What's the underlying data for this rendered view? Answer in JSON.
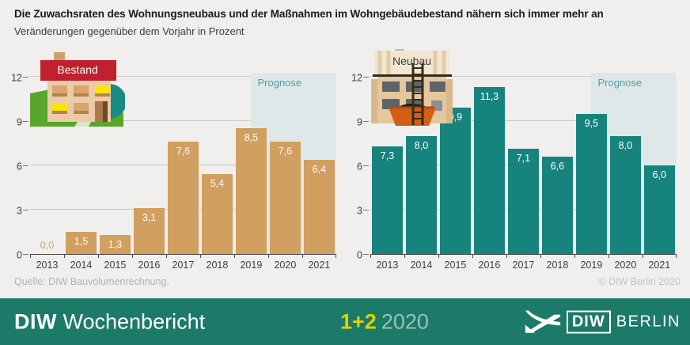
{
  "header": {
    "title": "Die Zuwachsraten des Wohnungsneubaus und der Maßnahmen im Wohngebäudebestand nähern sich immer mehr an",
    "subtitle": "Veränderungen gegenüber dem Vorjahr in Prozent"
  },
  "chart_data": [
    {
      "type": "bar",
      "title": "Bestand",
      "icon": "bestand-house-icon",
      "categories": [
        "2013",
        "2014",
        "2015",
        "2016",
        "2017",
        "2018",
        "2019",
        "2020",
        "2021"
      ],
      "values": [
        0.0,
        1.5,
        1.3,
        3.1,
        7.6,
        5.4,
        8.5,
        7.6,
        6.4
      ],
      "value_labels": [
        "0,0",
        "1,5",
        "1,3",
        "3,1",
        "7,6",
        "5,4",
        "8,5",
        "7,6",
        "6,4"
      ],
      "bar_color": "#d19f60",
      "ylim": [
        0,
        12
      ],
      "yticks": [
        0,
        3,
        6,
        9,
        12
      ],
      "grid": true,
      "forecast_label": "Prognose",
      "forecast_categories": [
        "2020",
        "2021"
      ],
      "forecast_band_color": "#dfe8e9",
      "forecast_label_color": "#4ba19e"
    },
    {
      "type": "bar",
      "title": "Neubau",
      "icon": "neubau-building-icon",
      "categories": [
        "2013",
        "2014",
        "2015",
        "2016",
        "2017",
        "2018",
        "2019",
        "2020",
        "2021"
      ],
      "values": [
        7.3,
        8.0,
        9.9,
        11.3,
        7.1,
        6.6,
        9.5,
        8.0,
        6.0
      ],
      "value_labels": [
        "7,3",
        "8,0",
        "9,9",
        "11,3",
        "7,1",
        "6,6",
        "9,5",
        "8,0",
        "6,0"
      ],
      "bar_color": "#17837d",
      "ylim": [
        0,
        12
      ],
      "yticks": [
        0,
        3,
        6,
        9,
        12
      ],
      "grid": true,
      "forecast_label": "Prognose",
      "forecast_categories": [
        "2020",
        "2021"
      ],
      "forecast_band_color": "#dfe8e9",
      "forecast_label_color": "#4ba19e"
    }
  ],
  "attribution": {
    "source": "Quelle: DIW Bauvolumenrechnung.",
    "copyright": "© DIW Berlin 2020"
  },
  "brandbar": {
    "publication_bold": "DIW",
    "publication_rest": "Wochenbericht",
    "issue": "1+2",
    "year": "2020",
    "logo_diw": "DIW",
    "logo_berlin": "BERLIN",
    "background_color": "#1c7a68",
    "issue_color": "#e0d100",
    "year_color": "#9cc0b4",
    "logo_icon": "diw-swoosh-icon"
  }
}
